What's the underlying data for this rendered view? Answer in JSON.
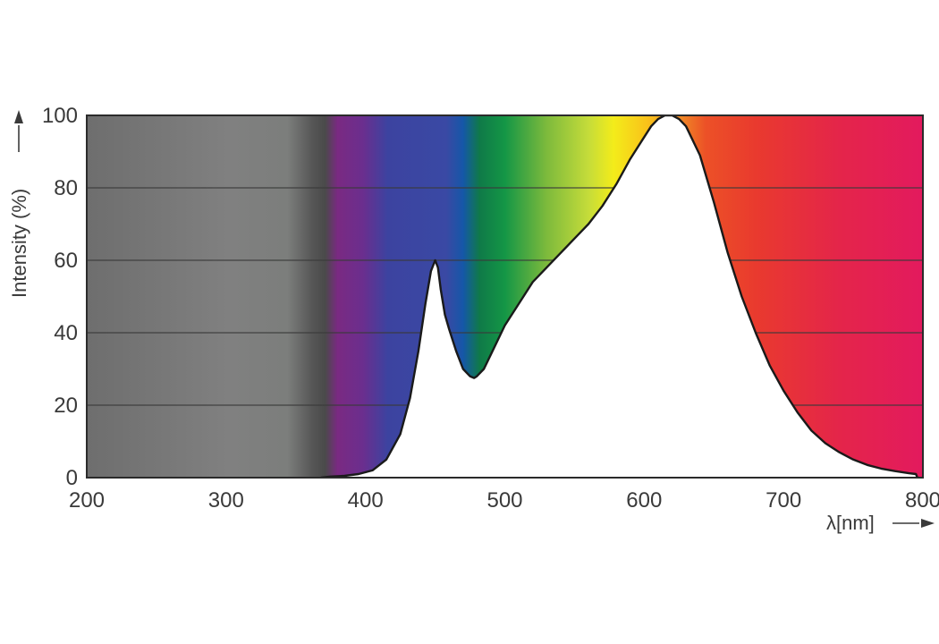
{
  "chart_data": {
    "type": "area",
    "xlabel": "λ[nm]",
    "ylabel": "Intensity (%)",
    "xlim": [
      200,
      800
    ],
    "ylim": [
      0,
      100
    ],
    "x_ticks": [
      200,
      300,
      400,
      500,
      600,
      700,
      800
    ],
    "y_ticks": [
      0,
      20,
      40,
      60,
      80,
      100
    ],
    "grid": true,
    "background": "visible light spectrum gradient (gray UV region, violet to red)",
    "series": [
      {
        "x": [
          368,
          375,
          385,
          395,
          405,
          415,
          425,
          432,
          438,
          443,
          447,
          450,
          452,
          454,
          457,
          460,
          465,
          470,
          475,
          478,
          480,
          485,
          490,
          495,
          500,
          510,
          520,
          530,
          540,
          550,
          560,
          570,
          580,
          590,
          600,
          605,
          610,
          615,
          620,
          625,
          630,
          640,
          650,
          660,
          670,
          680,
          690,
          700,
          710,
          720,
          730,
          740,
          750,
          760,
          770,
          780,
          790,
          795,
          796,
          797
        ],
        "y": [
          0,
          0.3,
          0.5,
          1,
          2,
          5,
          12,
          22,
          35,
          48,
          57,
          60,
          58,
          52,
          45,
          41,
          35,
          30,
          28,
          27.5,
          28,
          30,
          34,
          38,
          42,
          48,
          54,
          58,
          62,
          66,
          70,
          75,
          81,
          88,
          94,
          97,
          99,
          100,
          100,
          99,
          97,
          89,
          76,
          62,
          50,
          40,
          31,
          24,
          18,
          13,
          9.5,
          7,
          5,
          3.5,
          2.5,
          1.8,
          1.2,
          1,
          0,
          0
        ]
      }
    ]
  }
}
